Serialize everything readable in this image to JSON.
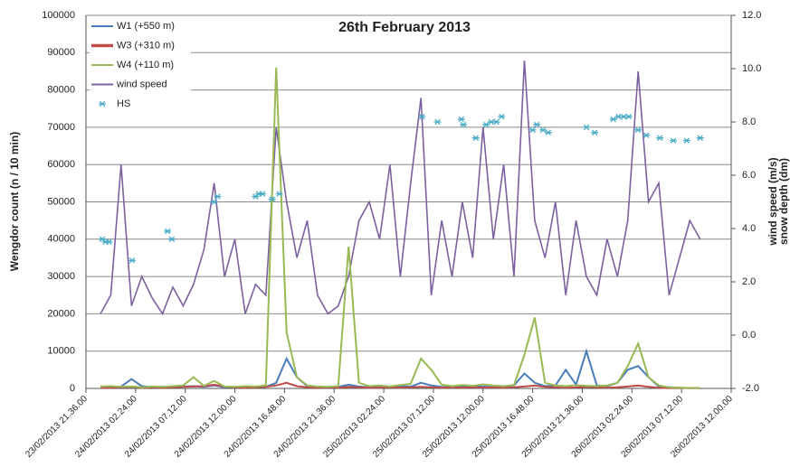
{
  "chart_data": {
    "type": "line",
    "title": "26th February 2013",
    "ylabel": "Wengdor count (n / 10 min)",
    "y2label": [
      "wind speed (m/s)",
      "snow depth (dm)"
    ],
    "xlim": [
      "23/02/2013 21.36.00",
      "26/02/2013 12.00.00"
    ],
    "xticks": [
      "23/02/2013 21.36.00",
      "24/02/2013 02.24.00",
      "24/02/2013 07.12.00",
      "24/02/2013 12.00.00",
      "24/02/2013 16.48.00",
      "24/02/2013 21.36.00",
      "25/02/2013 02.24.00",
      "25/02/2013 07.12.00",
      "25/02/2013 12.00.00",
      "25/02/2013 16.48.00",
      "25/02/2013 21.36.00",
      "26/02/2013 02.24.00",
      "26/02/2013 07.12.00",
      "26/02/2013 12.00.00"
    ],
    "ylim": [
      0,
      100000
    ],
    "yticks": [
      0,
      10000,
      20000,
      30000,
      40000,
      50000,
      60000,
      70000,
      80000,
      90000,
      100000
    ],
    "y2lim": [
      -2,
      12
    ],
    "y2ticks": [
      {
        "value": -2,
        "label": "-2.0"
      },
      {
        "value": 0,
        "label": "0.0"
      },
      {
        "value": 2,
        "label": "2.0"
      },
      {
        "value": 4,
        "label": "4.0"
      },
      {
        "value": 6,
        "label": "6.0"
      },
      {
        "value": 8,
        "label": "8.0"
      },
      {
        "value": 10,
        "label": "10.0"
      },
      {
        "value": 12,
        "label": "12.0"
      }
    ],
    "grid": true,
    "legend": "upper left",
    "x": [
      "23/02/2013 23.00.00",
      "24/02/2013 00.00.00",
      "24/02/2013 01.00.00",
      "24/02/2013 02.00.00",
      "24/02/2013 03.00.00",
      "24/02/2013 04.00.00",
      "24/02/2013 05.00.00",
      "24/02/2013 06.00.00",
      "24/02/2013 07.00.00",
      "24/02/2013 08.00.00",
      "24/02/2013 09.00.00",
      "24/02/2013 10.00.00",
      "24/02/2013 11.00.00",
      "24/02/2013 12.00.00",
      "24/02/2013 13.00.00",
      "24/02/2013 14.00.00",
      "24/02/2013 15.00.00",
      "24/02/2013 16.00.00",
      "24/02/2013 17.00.00",
      "24/02/2013 18.00.00",
      "24/02/2013 19.00.00",
      "24/02/2013 20.00.00",
      "24/02/2013 21.00.00",
      "24/02/2013 22.00.00",
      "24/02/2013 23.00.00",
      "25/02/2013 00.00.00",
      "25/02/2013 01.00.00",
      "25/02/2013 02.00.00",
      "25/02/2013 03.00.00",
      "25/02/2013 04.00.00",
      "25/02/2013 05.00.00",
      "25/02/2013 06.00.00",
      "25/02/2013 07.00.00",
      "25/02/2013 08.00.00",
      "25/02/2013 09.00.00",
      "25/02/2013 10.00.00",
      "25/02/2013 11.00.00",
      "25/02/2013 12.00.00",
      "25/02/2013 13.00.00",
      "25/02/2013 14.00.00",
      "25/02/2013 15.00.00",
      "25/02/2013 16.00.00",
      "25/02/2013 17.00.00",
      "25/02/2013 18.00.00",
      "25/02/2013 19.00.00",
      "25/02/2013 20.00.00",
      "25/02/2013 21.00.00",
      "25/02/2013 22.00.00",
      "25/02/2013 23.00.00",
      "26/02/2013 00.00.00",
      "26/02/2013 01.00.00",
      "26/02/2013 02.00.00",
      "26/02/2013 03.00.00",
      "26/02/2013 04.00.00",
      "26/02/2013 05.00.00",
      "26/02/2013 06.00.00",
      "26/02/2013 07.00.00",
      "26/02/2013 08.00.00",
      "26/02/2013 09.00.00"
    ],
    "series": [
      {
        "name": "W1 (+550 m)",
        "color": "#4a7ebb",
        "values": [
          300,
          400,
          500,
          2500,
          600,
          300,
          400,
          300,
          500,
          600,
          400,
          800,
          300,
          400,
          300,
          500,
          400,
          1500,
          8000,
          3000,
          600,
          400,
          300,
          400,
          1000,
          500,
          300,
          400,
          300,
          600,
          500,
          1500,
          800,
          400,
          300,
          600,
          400,
          500,
          300,
          400,
          800,
          4000,
          1500,
          600,
          800,
          5000,
          1000,
          10000,
          800,
          600,
          1500,
          5000,
          6000,
          3000,
          500,
          300,
          200,
          100,
          100
        ]
      },
      {
        "name": "W3 (+310 m)",
        "color": "#be4b48",
        "values": [
          200,
          200,
          300,
          400,
          200,
          300,
          200,
          300,
          400,
          500,
          600,
          1000,
          500,
          300,
          200,
          300,
          400,
          800,
          1500,
          600,
          300,
          200,
          300,
          200,
          400,
          300,
          200,
          200,
          300,
          200,
          300,
          400,
          300,
          200,
          300,
          200,
          300,
          200,
          300,
          200,
          300,
          500,
          800,
          400,
          300,
          200,
          300,
          400,
          300,
          200,
          300,
          500,
          800,
          400,
          200,
          100,
          100,
          100,
          100
        ]
      },
      {
        "name": "W4 (+110 m)",
        "color": "#98b954",
        "values": [
          500,
          600,
          400,
          500,
          300,
          500,
          400,
          600,
          800,
          3000,
          700,
          2000,
          500,
          400,
          600,
          500,
          800,
          86000,
          15000,
          3000,
          800,
          500,
          400,
          600,
          38000,
          1500,
          600,
          800,
          500,
          900,
          1200,
          8000,
          5000,
          1000,
          600,
          900,
          700,
          1100,
          800,
          600,
          900,
          9000,
          19000,
          1500,
          800,
          600,
          900,
          700,
          600,
          800,
          1500,
          6000,
          12000,
          3000,
          800,
          300,
          200,
          100,
          100
        ]
      },
      {
        "name": "wind speed",
        "color": "#7d60a0",
        "axis": "y2",
        "values": [
          0.8,
          1.5,
          6.4,
          1.1,
          2.2,
          1.4,
          0.8,
          1.8,
          1.1,
          1.9,
          3.2,
          5.7,
          2.2,
          3.6,
          0.8,
          1.9,
          1.5,
          7.8,
          5.0,
          2.9,
          4.3,
          1.5,
          0.8,
          1.1,
          2.2,
          4.3,
          5.0,
          3.6,
          6.4,
          2.2,
          5.7,
          8.9,
          1.5,
          4.3,
          2.2,
          5.0,
          2.9,
          7.8,
          3.6,
          6.4,
          2.2,
          10.3,
          4.3,
          2.9,
          5.0,
          1.5,
          4.3,
          2.2,
          1.5,
          3.6,
          2.2,
          4.3,
          9.9,
          5.0,
          5.7,
          1.5,
          2.9,
          4.3,
          3.6
        ]
      },
      {
        "name": "HS",
        "color": "#4bacc6",
        "axis": "y2",
        "type": "scatter",
        "x": [
          "23/02/2013 23.10.00",
          "23/02/2013 23.30.00",
          "23/02/2013 23.50.00",
          "24/02/2013 02.04.00",
          "24/02/2013 05.30.00",
          "24/02/2013 05.54.00",
          "24/02/2013 10.00.00",
          "24/02/2013 10.20.00",
          "24/02/2013 14.00.00",
          "24/02/2013 14.20.00",
          "24/02/2013 14.40.00",
          "24/02/2013 15.36.00",
          "24/02/2013 16.18.00",
          "25/02/2013 06.06.00",
          "25/02/2013 07.36.00",
          "25/02/2013 09.54.00",
          "25/02/2013 10.06.00",
          "25/02/2013 11.18.00",
          "25/02/2013 12.18.00",
          "25/02/2013 12.48.00",
          "25/02/2013 13.18.00",
          "25/02/2013 13.48.00",
          "25/02/2013 16.48.00",
          "25/02/2013 17.12.00",
          "25/02/2013 17.48.00",
          "25/02/2013 18.18.00",
          "25/02/2013 22.00.00",
          "25/02/2013 22.48.00",
          "26/02/2013 00.36.00",
          "26/02/2013 01.06.00",
          "26/02/2013 01.36.00",
          "26/02/2013 02.06.00",
          "26/02/2013 03.00.00",
          "26/02/2013 03.48.00",
          "26/02/2013 05.06.00",
          "26/02/2013 06.24.00",
          "26/02/2013 07.42.00",
          "26/02/2013 09.00.00"
        ],
        "values": [
          3.6,
          3.5,
          3.5,
          2.8,
          3.9,
          3.6,
          5.0,
          5.2,
          5.2,
          5.3,
          5.3,
          5.1,
          5.3,
          8.2,
          8.0,
          8.1,
          7.9,
          7.4,
          7.9,
          8.0,
          8.0,
          8.2,
          7.7,
          7.9,
          7.7,
          7.6,
          7.8,
          7.6,
          8.1,
          8.2,
          8.2,
          8.2,
          7.7,
          7.5,
          7.4,
          7.3,
          7.3,
          7.4
        ]
      }
    ]
  }
}
